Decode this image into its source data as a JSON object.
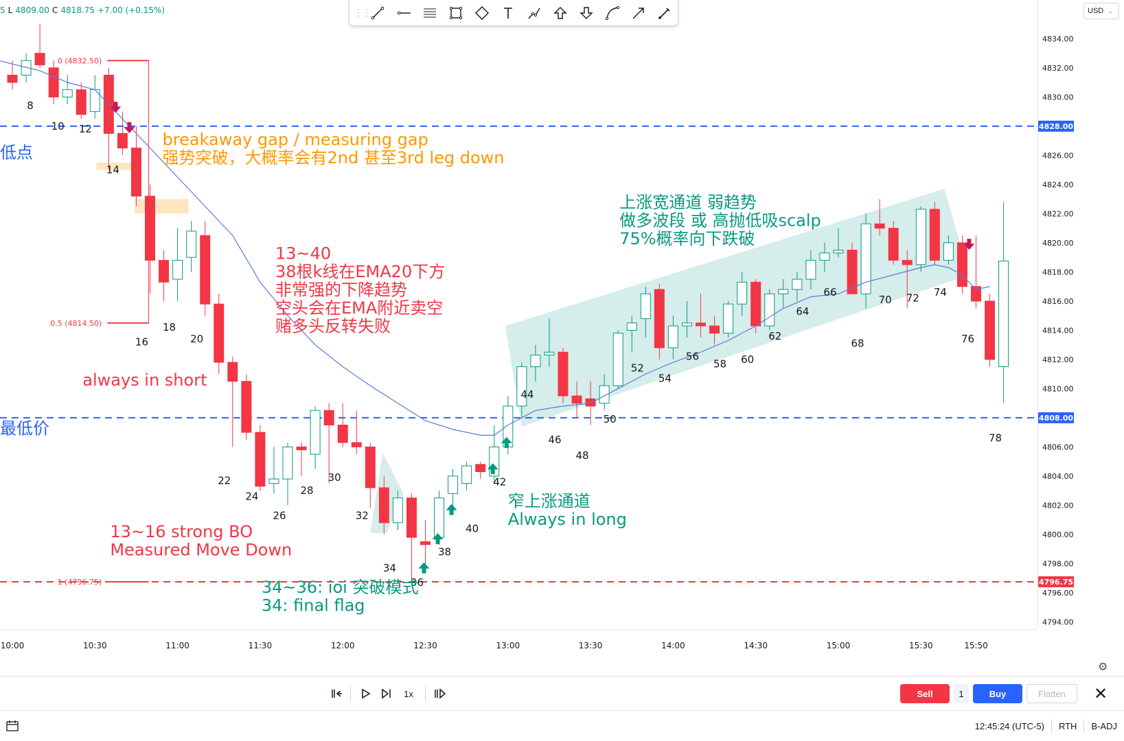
{
  "ohlc": {
    "prefix": "5",
    "l_label": "L",
    "l": "4809.00",
    "c_label": "C",
    "c": "4818.75",
    "chg": "+7.00 (+0.15%)"
  },
  "currency": "USD",
  "toolbar": {
    "tools": [
      "trend-line-icon",
      "horizontal-ray-icon",
      "parallel-channel-icon",
      "rectangle-icon",
      "rotated-rectangle-icon",
      "text-icon",
      "path-icon",
      "arrow-up-icon",
      "arrow-down-icon",
      "curve-icon",
      "arrow-marker-icon",
      "brush-icon"
    ]
  },
  "replay": {
    "speed": "1x"
  },
  "trade": {
    "sell": "Sell",
    "qty": "1",
    "buy": "Buy",
    "flatten": "Flatten"
  },
  "status": {
    "time": "12:45:24 (UTC-5)",
    "session": "RTH",
    "adj": "B-ADJ"
  },
  "chart_data": {
    "type": "candlestick",
    "ylim": [
      4793.5,
      4835.5
    ],
    "y_ticks": [
      4794,
      4796,
      4798,
      4800,
      4802,
      4804,
      4806,
      4808,
      4810,
      4812,
      4814,
      4816,
      4818,
      4820,
      4822,
      4824,
      4826,
      4828,
      4830,
      4832,
      4834
    ],
    "x_ticks": [
      {
        "label": "10:00",
        "bar": 0
      },
      {
        "label": "10:30",
        "bar": 6
      },
      {
        "label": "11:00",
        "bar": 12
      },
      {
        "label": "11:30",
        "bar": 18
      },
      {
        "label": "12:00",
        "bar": 24
      },
      {
        "label": "12:30",
        "bar": 30
      },
      {
        "label": "13:00",
        "bar": 36
      },
      {
        "label": "13:30",
        "bar": 42
      },
      {
        "label": "14:00",
        "bar": 48
      },
      {
        "label": "14:30",
        "bar": 54
      },
      {
        "label": "15:00",
        "bar": 60
      },
      {
        "label": "15:30",
        "bar": 66
      },
      {
        "label": "15:50",
        "bar": 70
      }
    ],
    "candles": [
      {
        "o": 4831.5,
        "h": 4832.5,
        "l": 4830.5,
        "c": 4831.0
      },
      {
        "o": 4831.5,
        "h": 4833.0,
        "l": 4831.0,
        "c": 4832.5
      },
      {
        "o": 4833.0,
        "h": 4835.0,
        "l": 4832.0,
        "c": 4832.2
      },
      {
        "o": 4832.0,
        "h": 4832.5,
        "l": 4829.5,
        "c": 4830.0
      },
      {
        "o": 4830.0,
        "h": 4831.5,
        "l": 4829.5,
        "c": 4830.5
      },
      {
        "o": 4830.5,
        "h": 4831.0,
        "l": 4828.5,
        "c": 4828.8
      },
      {
        "o": 4829.0,
        "h": 4831.5,
        "l": 4828.5,
        "c": 4830.5
      },
      {
        "o": 4831.5,
        "h": 4832.0,
        "l": 4825.0,
        "c": 4827.5
      },
      {
        "o": 4827.5,
        "h": 4829.0,
        "l": 4826.0,
        "c": 4826.5
      },
      {
        "o": 4826.5,
        "h": 4828.0,
        "l": 4822.5,
        "c": 4823.2
      },
      {
        "o": 4823.2,
        "h": 4824.0,
        "l": 4816.5,
        "c": 4818.8
      },
      {
        "o": 4818.8,
        "h": 4819.5,
        "l": 4816.0,
        "c": 4817.3
      },
      {
        "o": 4817.5,
        "h": 4821.0,
        "l": 4816.0,
        "c": 4818.8
      },
      {
        "o": 4819.0,
        "h": 4821.5,
        "l": 4818.0,
        "c": 4820.8
      },
      {
        "o": 4820.5,
        "h": 4821.5,
        "l": 4815.0,
        "c": 4815.8
      },
      {
        "o": 4815.8,
        "h": 4816.5,
        "l": 4811.0,
        "c": 4811.8
      },
      {
        "o": 4811.8,
        "h": 4812.2,
        "l": 4806.0,
        "c": 4810.5
      },
      {
        "o": 4810.5,
        "h": 4811.0,
        "l": 4806.5,
        "c": 4807.0
      },
      {
        "o": 4807.0,
        "h": 4807.5,
        "l": 4803.0,
        "c": 4803.3
      },
      {
        "o": 4803.5,
        "h": 4806.0,
        "l": 4802.8,
        "c": 4803.8
      },
      {
        "o": 4803.8,
        "h": 4806.3,
        "l": 4802.0,
        "c": 4806.0
      },
      {
        "o": 4806.0,
        "h": 4806.3,
        "l": 4804.0,
        "c": 4805.8
      },
      {
        "o": 4805.5,
        "h": 4808.8,
        "l": 4804.5,
        "c": 4808.5
      },
      {
        "o": 4808.5,
        "h": 4809.0,
        "l": 4803.5,
        "c": 4807.5
      },
      {
        "o": 4807.5,
        "h": 4809.0,
        "l": 4806.0,
        "c": 4806.3
      },
      {
        "o": 4806.3,
        "h": 4808.5,
        "l": 4805.5,
        "c": 4806.0
      },
      {
        "o": 4806.0,
        "h": 4806.3,
        "l": 4801.8,
        "c": 4803.2
      },
      {
        "o": 4803.2,
        "h": 4804.0,
        "l": 4800.0,
        "c": 4800.8
      },
      {
        "o": 4800.8,
        "h": 4803.0,
        "l": 4800.3,
        "c": 4802.5
      },
      {
        "o": 4802.5,
        "h": 4802.8,
        "l": 4796.8,
        "c": 4799.8
      },
      {
        "o": 4799.5,
        "h": 4801.0,
        "l": 4798.0,
        "c": 4799.3
      },
      {
        "o": 4799.8,
        "h": 4803.0,
        "l": 4799.3,
        "c": 4802.5
      },
      {
        "o": 4802.8,
        "h": 4804.5,
        "l": 4801.5,
        "c": 4804.0
      },
      {
        "o": 4803.5,
        "h": 4805.0,
        "l": 4803.0,
        "c": 4804.7
      },
      {
        "o": 4804.8,
        "h": 4805.0,
        "l": 4803.8,
        "c": 4804.3
      },
      {
        "o": 4804.0,
        "h": 4807.5,
        "l": 4803.5,
        "c": 4806.0
      },
      {
        "o": 4806.0,
        "h": 4809.5,
        "l": 4805.5,
        "c": 4808.8
      },
      {
        "o": 4808.8,
        "h": 4811.8,
        "l": 4808.0,
        "c": 4811.5
      },
      {
        "o": 4811.5,
        "h": 4813.0,
        "l": 4810.5,
        "c": 4812.3
      },
      {
        "o": 4812.3,
        "h": 4814.8,
        "l": 4811.5,
        "c": 4812.5
      },
      {
        "o": 4812.5,
        "h": 4812.8,
        "l": 4809.0,
        "c": 4809.5
      },
      {
        "o": 4809.5,
        "h": 4810.5,
        "l": 4808.0,
        "c": 4809.0
      },
      {
        "o": 4809.3,
        "h": 4810.5,
        "l": 4807.5,
        "c": 4808.8
      },
      {
        "o": 4809.0,
        "h": 4811.0,
        "l": 4808.5,
        "c": 4810.2
      },
      {
        "o": 4810.2,
        "h": 4814.0,
        "l": 4810.0,
        "c": 4813.8
      },
      {
        "o": 4814.0,
        "h": 4815.0,
        "l": 4812.5,
        "c": 4814.5
      },
      {
        "o": 4814.8,
        "h": 4817.0,
        "l": 4813.5,
        "c": 4816.5
      },
      {
        "o": 4816.8,
        "h": 4817.2,
        "l": 4812.0,
        "c": 4812.8
      },
      {
        "o": 4812.8,
        "h": 4815.0,
        "l": 4812.0,
        "c": 4814.3
      },
      {
        "o": 4814.3,
        "h": 4816.0,
        "l": 4813.5,
        "c": 4814.5
      },
      {
        "o": 4814.5,
        "h": 4816.5,
        "l": 4813.5,
        "c": 4814.3
      },
      {
        "o": 4814.3,
        "h": 4815.0,
        "l": 4813.0,
        "c": 4813.8
      },
      {
        "o": 4813.8,
        "h": 4816.0,
        "l": 4813.5,
        "c": 4815.8
      },
      {
        "o": 4815.8,
        "h": 4818.0,
        "l": 4815.0,
        "c": 4817.3
      },
      {
        "o": 4817.3,
        "h": 4817.5,
        "l": 4813.8,
        "c": 4814.3
      },
      {
        "o": 4814.3,
        "h": 4816.8,
        "l": 4814.0,
        "c": 4816.5
      },
      {
        "o": 4816.5,
        "h": 4817.5,
        "l": 4815.5,
        "c": 4816.8
      },
      {
        "o": 4816.8,
        "h": 4818.0,
        "l": 4816.0,
        "c": 4817.5
      },
      {
        "o": 4817.5,
        "h": 4819.5,
        "l": 4816.8,
        "c": 4818.8
      },
      {
        "o": 4818.8,
        "h": 4820.0,
        "l": 4818.0,
        "c": 4819.3
      },
      {
        "o": 4819.3,
        "h": 4821.0,
        "l": 4819.0,
        "c": 4819.5
      },
      {
        "o": 4819.5,
        "h": 4820.0,
        "l": 4816.5,
        "c": 4816.5
      },
      {
        "o": 4816.5,
        "h": 4822.0,
        "l": 4815.5,
        "c": 4821.3
      },
      {
        "o": 4821.3,
        "h": 4823.0,
        "l": 4820.5,
        "c": 4821.0
      },
      {
        "o": 4821.0,
        "h": 4821.5,
        "l": 4818.5,
        "c": 4818.8
      },
      {
        "o": 4818.8,
        "h": 4819.5,
        "l": 4815.5,
        "c": 4818.5
      },
      {
        "o": 4818.5,
        "h": 4822.5,
        "l": 4818.0,
        "c": 4822.3
      },
      {
        "o": 4822.3,
        "h": 4822.8,
        "l": 4818.5,
        "c": 4818.8
      },
      {
        "o": 4818.8,
        "h": 4820.5,
        "l": 4818.5,
        "c": 4820.0
      },
      {
        "o": 4820.0,
        "h": 4820.5,
        "l": 4816.5,
        "c": 4817.0
      },
      {
        "o": 4817.0,
        "h": 4820.5,
        "l": 4815.5,
        "c": 4816.0
      },
      {
        "o": 4816.0,
        "h": 4816.5,
        "l": 4811.5,
        "c": 4812.0
      },
      {
        "o": 4811.5,
        "h": 4822.8,
        "l": 4809.0,
        "c": 4818.75
      }
    ],
    "ema20": {
      "label": "EMA20",
      "points": [
        [
          -1,
          4832.5
        ],
        [
          2,
          4831.8
        ],
        [
          4,
          4831.0
        ],
        [
          6,
          4830.5
        ],
        [
          7,
          4829.5
        ],
        [
          8,
          4828.5
        ],
        [
          9,
          4827.5
        ],
        [
          10,
          4826.5
        ],
        [
          12,
          4824.5
        ],
        [
          14,
          4822.5
        ],
        [
          16,
          4820.5
        ],
        [
          18,
          4817.3
        ],
        [
          20,
          4815.0
        ],
        [
          22,
          4813.0
        ],
        [
          24,
          4811.5
        ],
        [
          26,
          4810.2
        ],
        [
          28,
          4809.0
        ],
        [
          30,
          4807.8
        ],
        [
          32,
          4807.2
        ],
        [
          34,
          4806.8
        ],
        [
          35,
          4806.8
        ],
        [
          36,
          4807.5
        ],
        [
          38,
          4808.5
        ],
        [
          40,
          4808.8
        ],
        [
          42,
          4809.0
        ],
        [
          44,
          4810.0
        ],
        [
          46,
          4811.0
        ],
        [
          48,
          4811.8
        ],
        [
          50,
          4812.5
        ],
        [
          52,
          4813.3
        ],
        [
          54,
          4814.3
        ],
        [
          56,
          4815.5
        ],
        [
          58,
          4816.3
        ],
        [
          60,
          4816.5
        ],
        [
          62,
          4817.3
        ],
        [
          64,
          4817.8
        ],
        [
          66,
          4818.3
        ],
        [
          67,
          4818.5
        ],
        [
          68,
          4818.3
        ],
        [
          69,
          4817.8
        ],
        [
          70,
          4816.8
        ],
        [
          71,
          4817.0
        ]
      ]
    },
    "h_lines": [
      {
        "price": 4828.0,
        "color": "#2962ff",
        "label": "4828.00"
      },
      {
        "price": 4808.0,
        "color": "#2962ff",
        "label": "4808.00"
      },
      {
        "price": 4796.75,
        "color": "#f23645",
        "label": "4796.75"
      }
    ],
    "fib_levels": [
      {
        "label": "0 (4832.50)",
        "price": 4832.5
      },
      {
        "label": "0.5 (4814.50)",
        "price": 4814.5
      },
      {
        "label": "1 (4796.75)",
        "price": 4796.75
      }
    ],
    "bar_numbers": [
      {
        "n": "8",
        "bar": 1.3,
        "price": 4829.4
      },
      {
        "n": "10",
        "bar": 3.3,
        "price": 4828.0
      },
      {
        "n": "12",
        "bar": 5.3,
        "price": 4827.8
      },
      {
        "n": "14",
        "bar": 7.3,
        "price": 4825.0
      },
      {
        "n": "16",
        "bar": 9.4,
        "price": 4813.2
      },
      {
        "n": "18",
        "bar": 11.4,
        "price": 4814.2
      },
      {
        "n": "20",
        "bar": 13.4,
        "price": 4813.4
      },
      {
        "n": "22",
        "bar": 15.4,
        "price": 4803.7
      },
      {
        "n": "24",
        "bar": 17.4,
        "price": 4802.6
      },
      {
        "n": "26",
        "bar": 19.4,
        "price": 4801.3
      },
      {
        "n": "28",
        "bar": 21.4,
        "price": 4803.0
      },
      {
        "n": "30",
        "bar": 23.4,
        "price": 4803.9
      },
      {
        "n": "32",
        "bar": 25.4,
        "price": 4801.3
      },
      {
        "n": "34",
        "bar": 27.4,
        "price": 4797.7
      },
      {
        "n": "36",
        "bar": 29.4,
        "price": 4796.7
      },
      {
        "n": "38",
        "bar": 31.4,
        "price": 4798.8
      },
      {
        "n": "40",
        "bar": 33.4,
        "price": 4800.4
      },
      {
        "n": "42",
        "bar": 35.4,
        "price": 4803.6
      },
      {
        "n": "44",
        "bar": 37.4,
        "price": 4809.6
      },
      {
        "n": "46",
        "bar": 39.4,
        "price": 4806.5
      },
      {
        "n": "48",
        "bar": 41.4,
        "price": 4805.4
      },
      {
        "n": "50",
        "bar": 43.4,
        "price": 4807.9
      },
      {
        "n": "52",
        "bar": 45.4,
        "price": 4811.4
      },
      {
        "n": "54",
        "bar": 47.4,
        "price": 4810.7
      },
      {
        "n": "56",
        "bar": 49.4,
        "price": 4812.2
      },
      {
        "n": "58",
        "bar": 51.4,
        "price": 4811.7
      },
      {
        "n": "60",
        "bar": 53.4,
        "price": 4812.0
      },
      {
        "n": "62",
        "bar": 55.4,
        "price": 4813.6
      },
      {
        "n": "64",
        "bar": 57.4,
        "price": 4815.3
      },
      {
        "n": "66",
        "bar": 59.4,
        "price": 4816.6
      },
      {
        "n": "68",
        "bar": 61.4,
        "price": 4813.1
      },
      {
        "n": "70",
        "bar": 63.4,
        "price": 4816.1
      },
      {
        "n": "72",
        "bar": 65.4,
        "price": 4816.2
      },
      {
        "n": "74",
        "bar": 67.4,
        "price": 4816.6
      },
      {
        "n": "76",
        "bar": 69.4,
        "price": 4813.4
      },
      {
        "n": "78",
        "bar": 71.4,
        "price": 4806.6
      }
    ],
    "down_arrows": [
      {
        "bar": 7.5,
        "price": 4829.2
      },
      {
        "bar": 8.5,
        "price": 4827.8
      },
      {
        "bar": 69.5,
        "price": 4819.8
      }
    ],
    "up_arrows": [
      {
        "bar": 29.9,
        "price": 4797.8
      },
      {
        "bar": 30.9,
        "price": 4799.8
      },
      {
        "bar": 31.9,
        "price": 4801.8
      },
      {
        "bar": 34.9,
        "price": 4804.6
      },
      {
        "bar": 35.9,
        "price": 4806.4
      }
    ],
    "annotations": [
      {
        "lines": [
          "低点"
        ],
        "color": "#2962ff",
        "bar": -0.9,
        "price": 4825.8,
        "size": 24
      },
      {
        "lines": [
          "最低价"
        ],
        "color": "#2962ff",
        "bar": -0.9,
        "price": 4806.9,
        "size": 24
      },
      {
        "lines": [
          "breakaway gap / measuring gap",
          "强势突破，大概率会有2nd 甚至3rd leg down"
        ],
        "color": "#ff9800",
        "bar": 10.9,
        "price": 4826.7,
        "size": 24
      },
      {
        "lines": [
          "13~40",
          "38根k线在EMA20下方",
          "非常强的下降趋势",
          "空头会在EMA附近卖空",
          "赌多头反转失败"
        ],
        "color": "#f23645",
        "bar": 19.1,
        "price": 4818.9,
        "size": 24
      },
      {
        "lines": [
          "always in short"
        ],
        "color": "#f23645",
        "bar": 5.1,
        "price": 4810.2,
        "size": 24
      },
      {
        "lines": [
          "13~16 strong BO",
          "Measured Move Down"
        ],
        "color": "#f23645",
        "bar": 7.1,
        "price": 4799.8,
        "size": 24
      },
      {
        "lines": [
          "34~36: ioi 突破模式",
          "34: final flag"
        ],
        "color": "#089981",
        "bar": 18.1,
        "price": 4796.0,
        "size": 24
      },
      {
        "lines": [
          "窄上涨通道",
          "Always in long"
        ],
        "color": "#089981",
        "bar": 36.0,
        "price": 4801.9,
        "size": 24
      },
      {
        "lines": [
          "上涨宽通道 弱趋势",
          "做多波段 或 高抛低吸scalp",
          "75%概率向下跌破"
        ],
        "color": "#089981",
        "bar": 44.1,
        "price": 4822.4,
        "size": 24
      }
    ],
    "channel_wide": {
      "points": [
        [
          35.8,
          4814.3
        ],
        [
          67.7,
          4823.7
        ],
        [
          69.5,
          4817.8
        ],
        [
          37.0,
          4807.4
        ]
      ],
      "color": "#b2dfdb"
    },
    "channel_narrow": {
      "points": [
        [
          26.9,
          4805.6
        ],
        [
          28.4,
          4802.8
        ],
        [
          27.2,
          4800.1
        ],
        [
          26.0,
          4800.1
        ]
      ],
      "color": "#b2dfdb"
    },
    "gap_boxes": [
      {
        "x0": 6.1,
        "x1": 9.1,
        "p0": 4825.5,
        "p1": 4825.0
      },
      {
        "x0": 8.9,
        "x1": 12.8,
        "p0": 4823.0,
        "p1": 4822.0
      }
    ],
    "fib_lines": [
      {
        "x0": 6.9,
        "x1": 9.9,
        "price": 4832.5
      },
      {
        "x0": 6.9,
        "x1": 9.9,
        "price": 4814.5
      },
      {
        "x0": 6.9,
        "x1": 9.9,
        "price": 4796.75
      }
    ]
  }
}
